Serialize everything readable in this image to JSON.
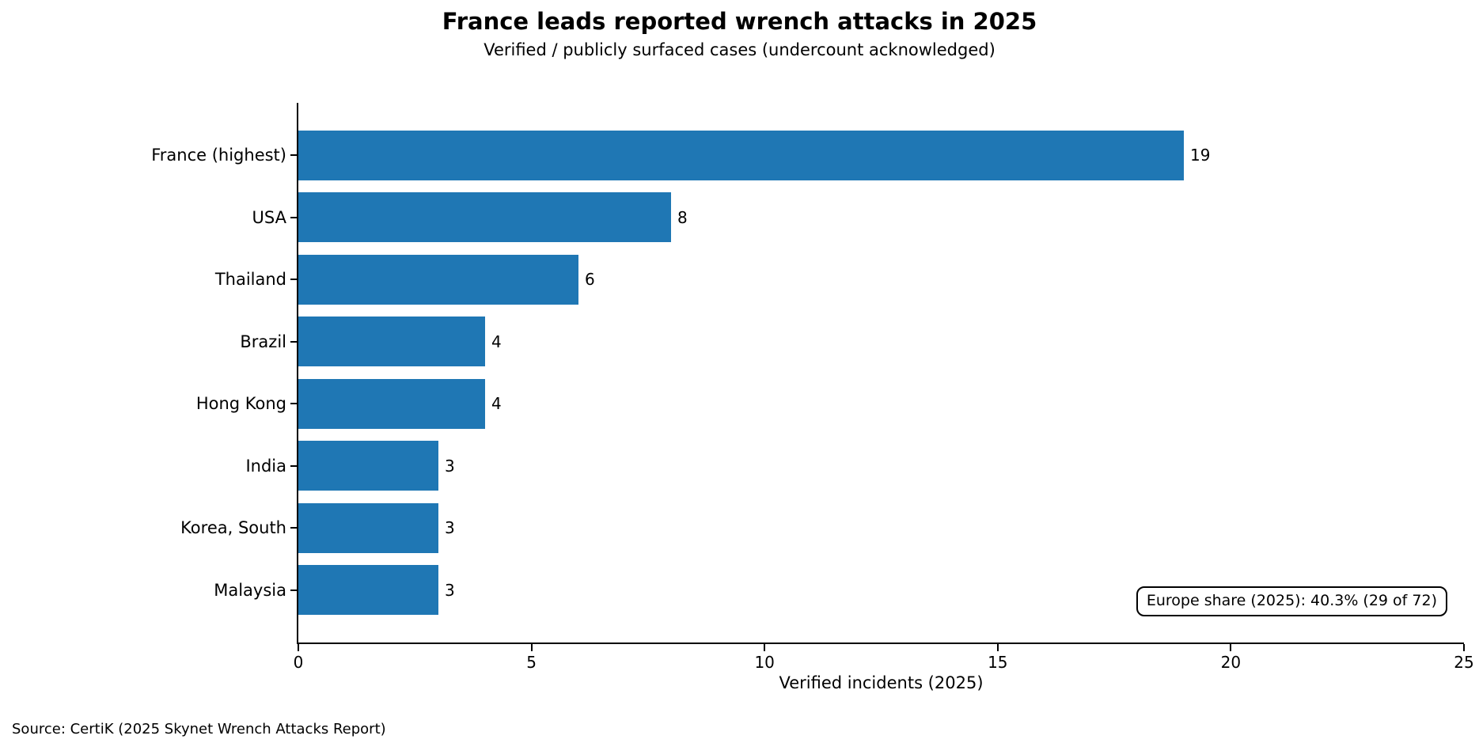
{
  "chart_data": {
    "type": "bar",
    "orientation": "horizontal",
    "title": "France leads reported wrench attacks in 2025",
    "subtitle": "Verified / publicly surfaced cases (undercount acknowledged)",
    "categories": [
      "France (highest)",
      "USA",
      "Thailand",
      "Brazil",
      "Hong Kong",
      "India",
      "Korea, South",
      "Malaysia"
    ],
    "values": [
      19,
      8,
      6,
      4,
      4,
      3,
      3,
      3
    ],
    "xlabel": "Verified incidents (2025)",
    "xlim": [
      0,
      25
    ],
    "xticks": [
      0,
      5,
      10,
      15,
      20,
      25
    ],
    "bar_color": "#1f77b4",
    "axis_color": "#000000",
    "grid": false,
    "legend_position": "none",
    "annotation": "Europe share (2025): 40.3% (29 of 72)",
    "source": "Source: CertiK (2025 Skynet Wrench Attacks Report)"
  }
}
